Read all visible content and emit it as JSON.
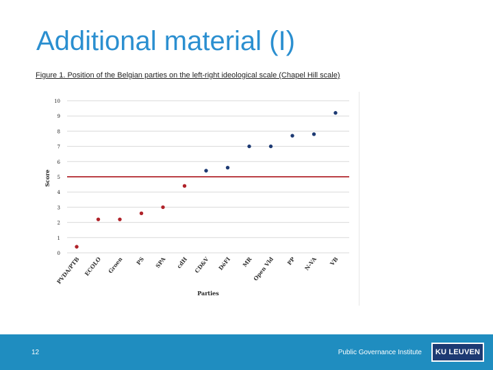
{
  "slide": {
    "title": "Additional material (I)",
    "caption": "Figure 1. Position of the Belgian parties on the left-right ideological scale (Chapel Hill scale)"
  },
  "footer": {
    "page_number": "12",
    "institute": "Public Governance Institute",
    "logo_text": "KU LEUVEN"
  },
  "colors": {
    "title": "#2b8fd0",
    "footer_bg": "#1f8dc0",
    "logo_bg": "#1d3a73",
    "left_parties": "#b0232a",
    "right_parties": "#1d3a73",
    "reference_line": "#b0232a",
    "grid": "#d9d9d9"
  },
  "chart_data": {
    "type": "scatter",
    "xlabel": "Parties",
    "ylabel": "Score",
    "ylim": [
      0,
      10
    ],
    "yticks": [
      0,
      1,
      2,
      3,
      4,
      5,
      6,
      7,
      8,
      9,
      10
    ],
    "grid": true,
    "reference_line": 5,
    "categories": [
      "PVDA/PTB",
      "ECOLO",
      "Groen",
      "PS",
      "SPA",
      "cdH",
      "CD&V",
      "DéFI",
      "MR",
      "Open Vld",
      "PP",
      "N-VA",
      "VB"
    ],
    "values": [
      0.4,
      2.2,
      2.2,
      2.6,
      3.0,
      4.4,
      5.4,
      5.6,
      7.0,
      7.0,
      7.7,
      7.8,
      9.2
    ],
    "point_groups": [
      "left",
      "left",
      "left",
      "left",
      "left",
      "left",
      "right",
      "right",
      "right",
      "right",
      "right",
      "right",
      "right"
    ]
  }
}
